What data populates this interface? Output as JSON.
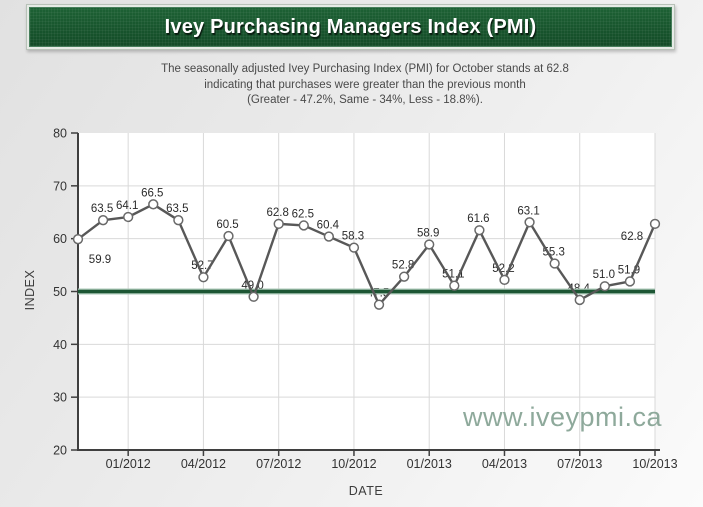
{
  "banner": {
    "title": "Ivey Purchasing Managers Index (PMI)",
    "bg_color": "#17552d"
  },
  "subtitle": {
    "line1": "The seasonally adjusted Ivey Purchasing Index (PMI) for October stands at 62.8",
    "line2": "indicating that purchases were greater than the previous month",
    "line3": "(Greater - 47.2%, Same - 34%, Less - 18.8%)."
  },
  "watermark": {
    "text": "www.iveypmi.ca",
    "color": "#8ea99b"
  },
  "chart_data": {
    "type": "line",
    "title": "Ivey Purchasing Managers Index (PMI)",
    "xlabel": "DATE",
    "ylabel": "INDEX",
    "ylim": [
      20,
      80
    ],
    "y_ticks": [
      20,
      30,
      40,
      50,
      60,
      70,
      80
    ],
    "x_tick_labels": [
      "01/2012",
      "04/2012",
      "07/2012",
      "10/2012",
      "01/2013",
      "04/2013",
      "07/2013",
      "10/2013"
    ],
    "x_tick_indices": [
      2,
      5,
      8,
      11,
      14,
      17,
      20,
      23
    ],
    "grid": true,
    "legend": "none",
    "reference_line": 50,
    "x": [
      "11/2011",
      "12/2011",
      "01/2012",
      "02/2012",
      "03/2012",
      "04/2012",
      "05/2012",
      "06/2012",
      "07/2012",
      "08/2012",
      "09/2012",
      "10/2012",
      "11/2012",
      "12/2012",
      "01/2013",
      "02/2013",
      "03/2013",
      "04/2013",
      "05/2013",
      "06/2013",
      "07/2013",
      "08/2013",
      "09/2013",
      "10/2013"
    ],
    "values": [
      59.9,
      63.5,
      64.1,
      66.5,
      63.5,
      52.7,
      60.5,
      49.0,
      62.8,
      62.5,
      60.4,
      58.3,
      47.5,
      52.8,
      58.9,
      51.1,
      61.6,
      52.2,
      63.1,
      55.3,
      48.4,
      51.0,
      51.9,
      62.8
    ],
    "point_labels": [
      "59.9",
      "63.5",
      "64.1",
      "66.5",
      "63.5",
      "52.7",
      "60.5",
      "49.0",
      "62.8",
      "62.5",
      "60.4",
      "58.3",
      "47.5",
      "52.8",
      "58.9",
      "51.1",
      "61.6",
      "52.2",
      "63.1",
      "55.3",
      "48.4",
      "51.0",
      "51.9",
      "62.8"
    ],
    "colors": {
      "series_line": "#585858",
      "marker_fill": "#ffffff",
      "marker_stroke": "#696969",
      "reference_line": "#1d5634",
      "reference_halo": "#adc9b8",
      "gridline": "#d9d9d9",
      "axis": "#3f3f3f",
      "label_text": "#2b2b2b",
      "plot_bg": "#ffffff"
    }
  }
}
